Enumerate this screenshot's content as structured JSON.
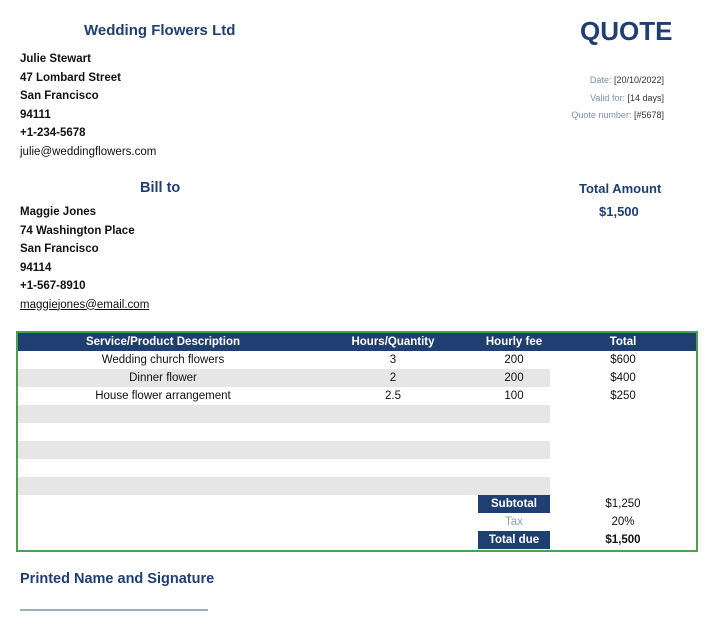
{
  "company": {
    "name": "Wedding Flowers Ltd",
    "contact": "Julie Stewart",
    "street": "47 Lombard Street",
    "city": "San Francisco",
    "zip": "94111",
    "phone": "+1-234-5678",
    "email": "julie@weddingflowers.com"
  },
  "title": "QUOTE",
  "meta": {
    "date_label": "Date:",
    "date": "[20/10/2022]",
    "valid_label": "Valid for:",
    "valid": "[14 days]",
    "number_label": "Quote number:",
    "number": "[#5678]"
  },
  "bill_to": {
    "title": "Bill to",
    "name": "Maggie Jones",
    "street": "74 Washington Place",
    "city": "San Francisco",
    "zip": "94114",
    "phone": "+1-567-8910",
    "email": "maggiejones@email.com"
  },
  "total_amount": {
    "label": "Total Amount",
    "value": "$1,500"
  },
  "table": {
    "headers": [
      "Service/Product Description",
      "Hours/Quantity",
      "Hourly fee",
      "Total"
    ],
    "rows": [
      [
        "Wedding church flowers",
        "3",
        "200",
        "$600"
      ],
      [
        "Dinner flower",
        "2",
        "200",
        "$400"
      ],
      [
        "House flower arrangement",
        "2.5",
        "100",
        "$250"
      ]
    ],
    "subtotal_label": "Subtotal",
    "subtotal": "$1,250",
    "tax_label": "Tax",
    "tax": "20%",
    "total_label": "Total due",
    "total": "$1,500"
  },
  "signature_label": "Printed Name and Signature",
  "colors": {
    "accent": "#1f3f73",
    "border": "#4aa14f",
    "stripe": "#e6e6e6"
  }
}
